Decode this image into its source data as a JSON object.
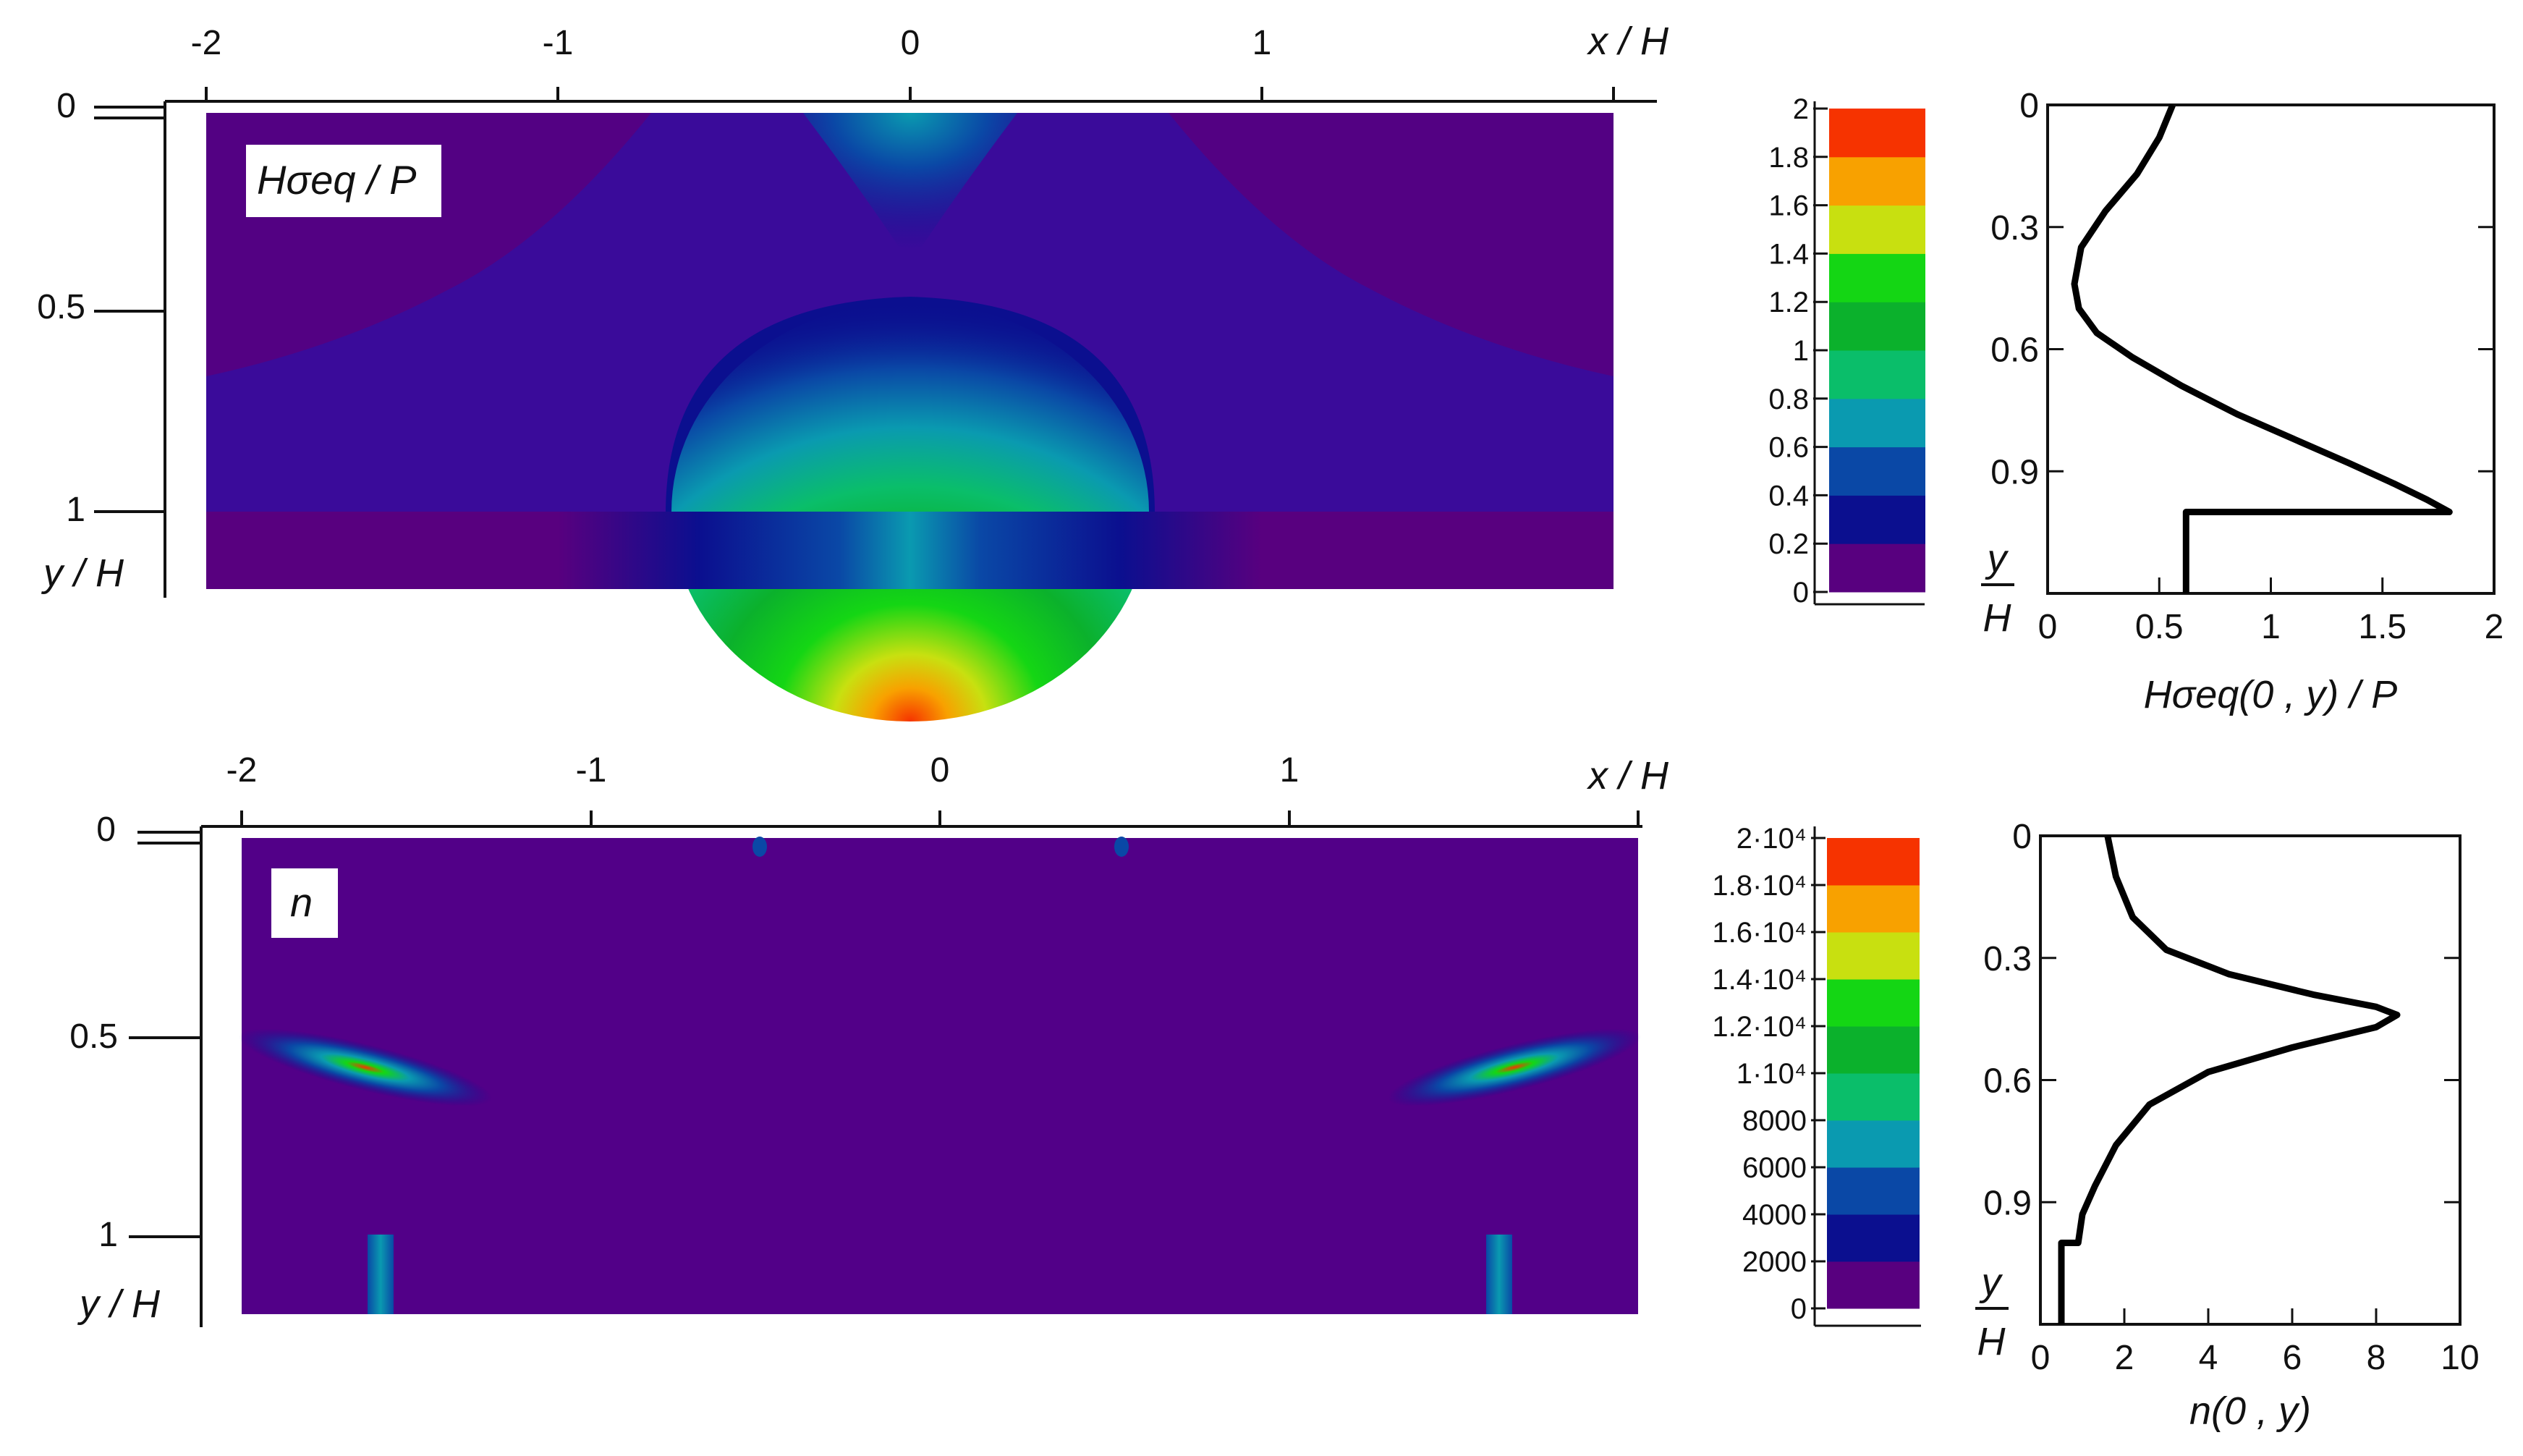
{
  "chart_data": [
    {
      "type": "heatmap",
      "panel_label": "Hσeq / P",
      "xlabel": "x / H",
      "ylabel": "y / H",
      "x_ticks": [
        "-2",
        "-1",
        "0",
        "1"
      ],
      "y_ticks": [
        "0",
        "0.5",
        "1"
      ],
      "xlim": [
        -2,
        2
      ],
      "ylim": [
        0,
        1.2
      ],
      "colorbar": {
        "ticks": [
          "2",
          "1.8",
          "1.6",
          "1.4",
          "1.2",
          "1",
          "0.8",
          "0.6",
          "0.4",
          "0.2",
          "0"
        ],
        "range": [
          0,
          2
        ],
        "colors": [
          "#58007f",
          "#0b0f8f",
          "#0a48a6",
          "#0a9ab0",
          "#0abe6a",
          "#0bb12c",
          "#14d614",
          "#c8e010",
          "#f8a100",
          "#f63300"
        ]
      },
      "features": [
        {
          "x": 0,
          "y": 1.0,
          "value": 1.8,
          "desc": "peak"
        },
        {
          "x": 0,
          "y": 0.05,
          "value": 0.5,
          "desc": "surface lobe"
        }
      ]
    },
    {
      "type": "line",
      "xlabel": "Hσeq(0 , y) / P",
      "ylabel_num": "y",
      "ylabel_den": "H",
      "x_ticks": [
        "0",
        "0.5",
        "1",
        "1.5",
        "2"
      ],
      "y_ticks": [
        "0",
        "0.3",
        "0.6",
        "0.9"
      ],
      "xlim": [
        0,
        2
      ],
      "ylim": [
        0,
        1.2
      ],
      "series": [
        {
          "x": [
            0.56,
            0.5,
            0.4,
            0.26,
            0.15,
            0.12,
            0.14,
            0.22,
            0.38,
            0.6,
            0.85,
            1.1,
            1.35,
            1.55,
            1.7,
            1.8,
            0.62,
            0.62,
            0.62
          ],
          "y": [
            0.0,
            0.08,
            0.17,
            0.26,
            0.35,
            0.44,
            0.5,
            0.56,
            0.62,
            0.69,
            0.76,
            0.82,
            0.88,
            0.93,
            0.97,
            1.0,
            1.0,
            1.1,
            1.2
          ]
        }
      ]
    },
    {
      "type": "heatmap",
      "panel_label": "n",
      "xlabel": "x / H",
      "ylabel": "y / H",
      "x_ticks": [
        "-2",
        "-1",
        "0",
        "1"
      ],
      "y_ticks": [
        "0",
        "0.5",
        "1"
      ],
      "xlim": [
        -2,
        2
      ],
      "ylim": [
        0,
        1.2
      ],
      "colorbar": {
        "ticks": [
          "2·10⁴",
          "1.8·10⁴",
          "1.6·10⁴",
          "1.4·10⁴",
          "1.2·10⁴",
          "1·10⁴",
          "8000",
          "6000",
          "4000",
          "2000",
          "0"
        ],
        "range": [
          0,
          20000
        ],
        "colors": [
          "#58007f",
          "#0b0f8f",
          "#0a48a6",
          "#0a9ab0",
          "#0abe6a",
          "#0bb12c",
          "#14d614",
          "#c8e010",
          "#f8a100",
          "#f63300"
        ]
      },
      "features": [
        {
          "x": -1.6,
          "y": 0.58,
          "value": 20000,
          "desc": "left hotspot"
        },
        {
          "x": 1.6,
          "y": 0.58,
          "value": 20000,
          "desc": "right hotspot"
        }
      ]
    },
    {
      "type": "line",
      "xlabel": "n(0 , y)",
      "ylabel_num": "y",
      "ylabel_den": "H",
      "x_ticks": [
        "0",
        "2",
        "4",
        "6",
        "8",
        "10"
      ],
      "y_ticks": [
        "0",
        "0.3",
        "0.6",
        "0.9"
      ],
      "xlim": [
        0,
        10
      ],
      "ylim": [
        0,
        1.2
      ],
      "series": [
        {
          "x": [
            1.6,
            1.8,
            2.2,
            3.0,
            4.5,
            6.5,
            8.0,
            8.5,
            8.0,
            6.0,
            4.0,
            2.6,
            1.8,
            1.3,
            1.0,
            0.9,
            0.9,
            0.5,
            0.5,
            0.5
          ],
          "y": [
            0.0,
            0.1,
            0.2,
            0.28,
            0.34,
            0.39,
            0.42,
            0.44,
            0.47,
            0.52,
            0.58,
            0.66,
            0.76,
            0.86,
            0.93,
            1.0,
            1.0,
            1.0,
            1.1,
            1.2
          ]
        }
      ]
    }
  ]
}
